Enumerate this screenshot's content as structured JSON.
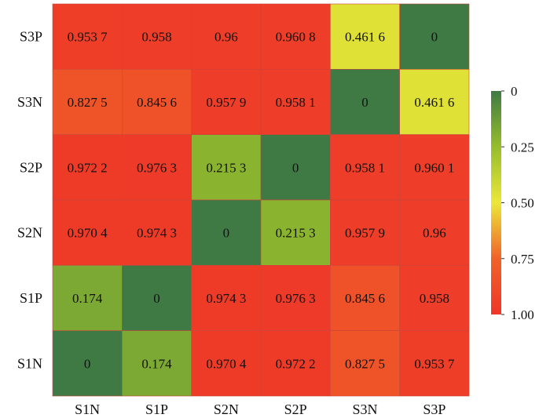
{
  "chart_data": {
    "type": "heatmap",
    "title": "",
    "xlabel": "",
    "ylabel": "",
    "x_categories": [
      "S1N",
      "S1P",
      "S2N",
      "S2P",
      "S3N",
      "S3P"
    ],
    "y_categories_top_to_bottom": [
      "S3P",
      "S3N",
      "S2P",
      "S2N",
      "S1P",
      "S1N"
    ],
    "values": [
      [
        0.9537,
        0.958,
        0.96,
        0.9608,
        0.4616,
        0
      ],
      [
        0.8275,
        0.8456,
        0.9579,
        0.9581,
        0,
        0.4616
      ],
      [
        0.9722,
        0.9763,
        0.2153,
        0,
        0.9581,
        0.9601
      ],
      [
        0.9704,
        0.9743,
        0,
        0.2153,
        0.9579,
        0.96
      ],
      [
        0.174,
        0,
        0.9743,
        0.9763,
        0.8456,
        0.958
      ],
      [
        0,
        0.174,
        0.9704,
        0.9722,
        0.8275,
        0.9537
      ]
    ],
    "cell_labels": [
      [
        "0.953 7",
        "0.958",
        "0.96",
        "0.960 8",
        "0.461 6",
        "0"
      ],
      [
        "0.827 5",
        "0.845 6",
        "0.957 9",
        "0.958 1",
        "0",
        "0.461 6"
      ],
      [
        "0.972 2",
        "0.976 3",
        "0.215 3",
        "0",
        "0.958 1",
        "0.960 1"
      ],
      [
        "0.970 4",
        "0.974 3",
        "0",
        "0.215 3",
        "0.957 9",
        "0.96"
      ],
      [
        "0.174",
        "0",
        "0.974 3",
        "0.976 3",
        "0.845 6",
        "0.958"
      ],
      [
        "0",
        "0.174",
        "0.970 4",
        "0.972 2",
        "0.827 5",
        "0.953 7"
      ]
    ],
    "colorbar": {
      "range": [
        0,
        1
      ],
      "ticks": [
        0,
        0.25,
        0.5,
        0.75,
        1.0
      ],
      "tick_labels": [
        "0",
        "0.25",
        "0.50",
        "0.75",
        "1.00"
      ],
      "orientation": "top-to-bottom",
      "placement": "right"
    },
    "colormap": [
      {
        "stop": 0,
        "color": "#3f7a44"
      },
      {
        "stop": 0.25,
        "color": "#96bd2c"
      },
      {
        "stop": 0.5,
        "color": "#ece739"
      },
      {
        "stop": 0.75,
        "color": "#f0622a"
      },
      {
        "stop": 1,
        "color": "#ee3628"
      }
    ],
    "grid": false,
    "legend": "none"
  }
}
